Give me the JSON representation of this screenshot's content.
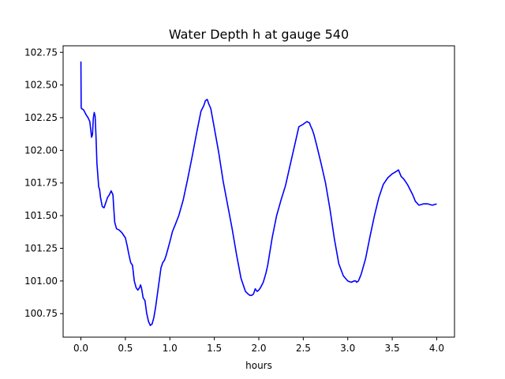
{
  "chart_data": {
    "type": "line",
    "title": "Water Depth h at gauge 540",
    "xlabel": "hours",
    "ylabel": "",
    "xlim": [
      -0.2,
      4.2
    ],
    "ylim": [
      100.57,
      102.8
    ],
    "grid": false,
    "xticks": [
      0.0,
      0.5,
      1.0,
      1.5,
      2.0,
      2.5,
      3.0,
      3.5,
      4.0
    ],
    "xtick_labels": [
      "0.0",
      "0.5",
      "1.0",
      "1.5",
      "2.0",
      "2.5",
      "3.0",
      "3.5",
      "4.0"
    ],
    "yticks": [
      100.75,
      101.0,
      101.25,
      101.5,
      101.75,
      102.0,
      102.25,
      102.5,
      102.75
    ],
    "ytick_labels": [
      "100.75",
      "101.00",
      "101.25",
      "101.50",
      "101.75",
      "102.00",
      "102.25",
      "102.50",
      "102.75"
    ],
    "line_color": "#0000ff",
    "series": [
      {
        "x": [
          0.0,
          0.003,
          0.006,
          0.03,
          0.06,
          0.08,
          0.1,
          0.12,
          0.13,
          0.14,
          0.15,
          0.16,
          0.17,
          0.18,
          0.2,
          0.21,
          0.22,
          0.24,
          0.26,
          0.28,
          0.3,
          0.32,
          0.34,
          0.36,
          0.37,
          0.38,
          0.4,
          0.43,
          0.46,
          0.5,
          0.52,
          0.54,
          0.56,
          0.58,
          0.6,
          0.62,
          0.64,
          0.66,
          0.67,
          0.68,
          0.7,
          0.72,
          0.74,
          0.76,
          0.78,
          0.8,
          0.82,
          0.84,
          0.86,
          0.88,
          0.9,
          0.92,
          0.94,
          0.96,
          0.98,
          1.0,
          1.03,
          1.06,
          1.1,
          1.15,
          1.2,
          1.25,
          1.3,
          1.35,
          1.38,
          1.4,
          1.42,
          1.44,
          1.46,
          1.5,
          1.55,
          1.6,
          1.65,
          1.7,
          1.75,
          1.8,
          1.85,
          1.88,
          1.9,
          1.92,
          1.94,
          1.96,
          1.98,
          2.0,
          2.02,
          2.05,
          2.08,
          2.1,
          2.15,
          2.2,
          2.25,
          2.3,
          2.35,
          2.4,
          2.45,
          2.5,
          2.54,
          2.57,
          2.58,
          2.6,
          2.62,
          2.65,
          2.7,
          2.75,
          2.8,
          2.85,
          2.9,
          2.95,
          3.0,
          3.04,
          3.07,
          3.09,
          3.1,
          3.12,
          3.15,
          3.2,
          3.25,
          3.3,
          3.35,
          3.4,
          3.45,
          3.5,
          3.55,
          3.57,
          3.6,
          3.63,
          3.67,
          3.7,
          3.73,
          3.76,
          3.8,
          3.85,
          3.9,
          3.95,
          4.0
        ],
        "y": [
          102.68,
          102.33,
          102.32,
          102.31,
          102.27,
          102.25,
          102.22,
          102.1,
          102.12,
          102.25,
          102.29,
          102.26,
          102.1,
          101.9,
          101.72,
          101.7,
          101.64,
          101.57,
          101.56,
          101.6,
          101.64,
          101.66,
          101.69,
          101.66,
          101.55,
          101.45,
          101.4,
          101.39,
          101.37,
          101.33,
          101.27,
          101.2,
          101.14,
          101.12,
          101.0,
          100.95,
          100.93,
          100.95,
          100.97,
          100.95,
          100.87,
          100.85,
          100.75,
          100.69,
          100.66,
          100.67,
          100.72,
          100.8,
          100.9,
          101.0,
          101.1,
          101.14,
          101.16,
          101.2,
          101.25,
          101.3,
          101.38,
          101.43,
          101.5,
          101.62,
          101.78,
          101.95,
          102.13,
          102.3,
          102.34,
          102.38,
          102.39,
          102.35,
          102.32,
          102.17,
          101.98,
          101.76,
          101.58,
          101.4,
          101.2,
          101.02,
          100.92,
          100.9,
          100.89,
          100.89,
          100.9,
          100.94,
          100.92,
          100.93,
          100.95,
          100.99,
          101.06,
          101.12,
          101.33,
          101.5,
          101.62,
          101.73,
          101.88,
          102.03,
          102.18,
          102.2,
          102.22,
          102.21,
          102.19,
          102.16,
          102.12,
          102.04,
          101.9,
          101.75,
          101.55,
          101.32,
          101.13,
          101.04,
          101.0,
          100.99,
          101.0,
          101.0,
          100.99,
          101.0,
          101.05,
          101.17,
          101.34,
          101.5,
          101.64,
          101.74,
          101.79,
          101.82,
          101.84,
          101.85,
          101.8,
          101.78,
          101.74,
          101.7,
          101.66,
          101.61,
          101.58,
          101.59,
          101.59,
          101.58,
          101.59
        ]
      }
    ]
  }
}
